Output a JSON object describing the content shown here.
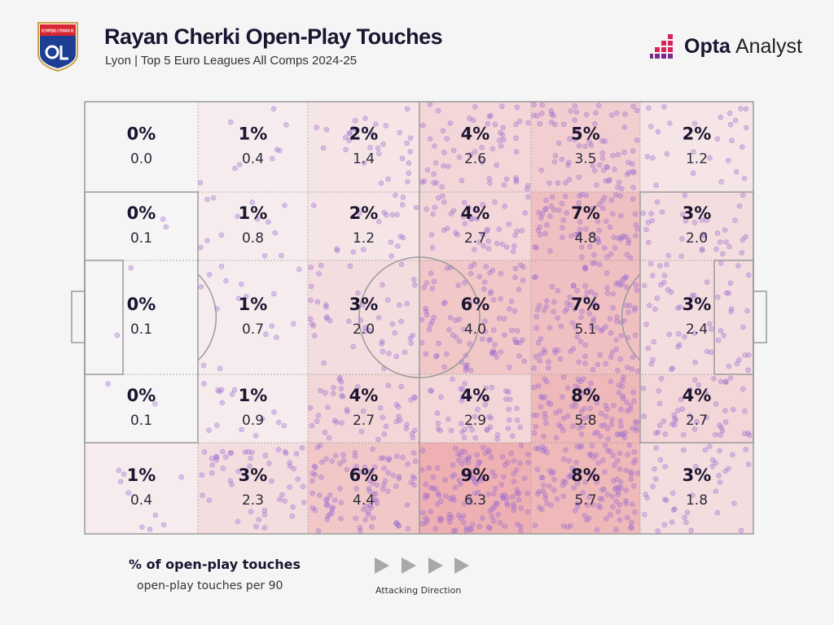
{
  "header": {
    "title": "Rayan Cherki Open-Play Touches",
    "subtitle": "Lyon | Top 5 Euro Leagues All Comps 2024-25",
    "crest_text": "OLYMPIQUE LYONNAIS OL",
    "brand_bold": "Opta",
    "brand_light": "Analyst"
  },
  "legend": {
    "pct_label": "% of open-play touches",
    "p90_label": "open-play touches per 90",
    "direction_label": "Attacking Direction",
    "direction_icon": "play-arrow-icon"
  },
  "colors": {
    "max_cell": "#eeb0b2",
    "min_cell": "#f7f4f5",
    "dot": "#9a6cd0",
    "line": "#9a9a9a"
  },
  "chart_data": {
    "type": "heatmap",
    "rows_order": "top to bottom",
    "columns_order": "left (own goal) to right (attacking)",
    "percent": [
      [
        "0%",
        "1%",
        "2%",
        "4%",
        "5%",
        "2%"
      ],
      [
        "0%",
        "1%",
        "2%",
        "4%",
        "7%",
        "3%"
      ],
      [
        "0%",
        "1%",
        "3%",
        "6%",
        "7%",
        "3%"
      ],
      [
        "0%",
        "1%",
        "4%",
        "4%",
        "8%",
        "4%"
      ],
      [
        "1%",
        "3%",
        "6%",
        "9%",
        "8%",
        "3%"
      ]
    ],
    "per90": [
      [
        "0.0",
        "0.4",
        "1.4",
        "2.6",
        "3.5",
        "1.2"
      ],
      [
        "0.1",
        "0.8",
        "1.2",
        "2.7",
        "4.8",
        "2.0"
      ],
      [
        "0.1",
        "0.7",
        "2.0",
        "4.0",
        "5.1",
        "2.4"
      ],
      [
        "0.1",
        "0.9",
        "2.7",
        "2.9",
        "5.8",
        "2.7"
      ],
      [
        "0.4",
        "2.3",
        "4.4",
        "6.3",
        "5.7",
        "1.8"
      ]
    ]
  }
}
